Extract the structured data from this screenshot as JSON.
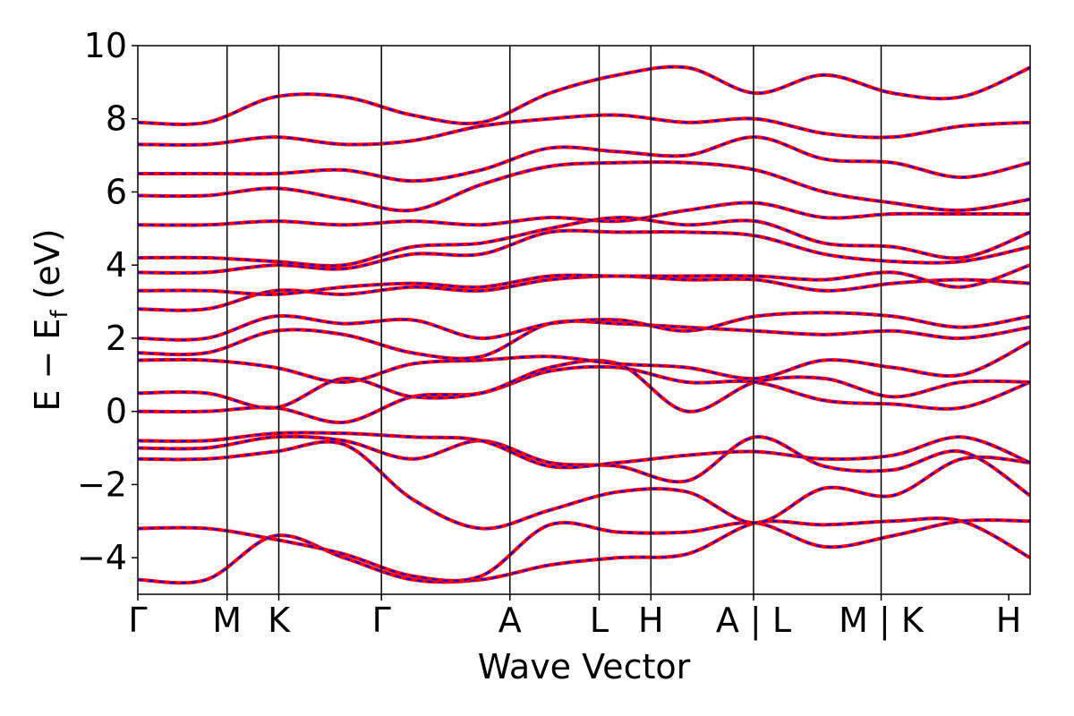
{
  "chart_data": {
    "type": "line",
    "xlabel": "Wave Vector",
    "ylabel_main": "E − E",
    "ylabel_sub": "f",
    "ylabel_unit": "(eV)",
    "ylim": [
      -5,
      10
    ],
    "yticks": [
      -4,
      -2,
      0,
      2,
      4,
      6,
      8,
      10
    ],
    "ytick_labels": [
      "−4",
      "−2",
      "0",
      "2",
      "4",
      "6",
      "8",
      "10"
    ],
    "xlim": [
      0,
      10
    ],
    "kpoints": [
      {
        "label": "Γ",
        "x": 0.0
      },
      {
        "label": "M",
        "x": 1.0
      },
      {
        "label": "K",
        "x": 1.58
      },
      {
        "label": "Γ",
        "x": 2.73
      },
      {
        "label": "A",
        "x": 4.17
      },
      {
        "label": "L",
        "x": 5.17
      },
      {
        "label": "H",
        "x": 5.75
      },
      {
        "label": "A | L",
        "x": 6.9
      },
      {
        "label": "M | K",
        "x": 8.33
      },
      {
        "label": "H",
        "x": 9.76
      }
    ],
    "grid": false,
    "series": [
      {
        "color": "#ff0000",
        "style": "solid"
      },
      {
        "color": "#0000ff",
        "style": "dashed"
      }
    ],
    "bands": [
      [
        -4.6,
        -4.6,
        -3.4,
        -4.0,
        -4.6,
        -4.6,
        -4.2,
        -4.0,
        -3.9,
        -3.05,
        -3.1,
        -3.0,
        -3.0,
        -4.0
      ],
      [
        -3.2,
        -3.2,
        -3.5,
        -3.9,
        -4.5,
        -4.5,
        -3.1,
        -3.3,
        -3.3,
        -3.05,
        -3.7,
        -3.4,
        -3.0,
        -3.0
      ],
      [
        -1.3,
        -1.3,
        -1.1,
        -0.9,
        -2.4,
        -3.2,
        -2.7,
        -2.2,
        -2.2,
        -3.05,
        -2.1,
        -2.3,
        -1.3,
        -1.4
      ],
      [
        -1.0,
        -1.0,
        -0.7,
        -0.8,
        -1.3,
        -0.8,
        -1.4,
        -1.5,
        -1.9,
        -0.7,
        -1.5,
        -1.6,
        -1.1,
        -2.3
      ],
      [
        -0.8,
        -0.8,
        -0.6,
        -0.6,
        -0.7,
        -0.8,
        -1.5,
        -1.4,
        -1.2,
        -1.1,
        -1.3,
        -1.2,
        -0.7,
        -1.4
      ],
      [
        0.0,
        0.0,
        0.1,
        -0.3,
        0.4,
        0.5,
        1.1,
        1.2,
        0.8,
        0.8,
        0.3,
        0.2,
        0.1,
        0.8
      ],
      [
        0.5,
        0.5,
        0.1,
        0.9,
        0.4,
        0.5,
        1.2,
        1.3,
        0.0,
        0.8,
        0.9,
        0.4,
        0.8,
        0.8
      ],
      [
        1.4,
        1.4,
        1.2,
        0.8,
        1.3,
        1.4,
        1.5,
        1.3,
        1.2,
        0.9,
        1.4,
        1.2,
        1.0,
        1.9
      ],
      [
        1.6,
        1.6,
        2.2,
        2.1,
        1.6,
        1.5,
        2.4,
        2.4,
        2.3,
        2.2,
        2.1,
        2.2,
        2.0,
        2.3
      ],
      [
        2.0,
        2.0,
        2.6,
        2.4,
        2.5,
        2.0,
        2.4,
        2.5,
        2.2,
        2.6,
        2.7,
        2.6,
        2.3,
        2.6
      ],
      [
        2.8,
        2.8,
        3.3,
        3.2,
        3.4,
        3.3,
        3.6,
        3.7,
        3.6,
        3.6,
        3.3,
        3.5,
        3.6,
        3.5
      ],
      [
        3.3,
        3.3,
        3.2,
        3.4,
        3.5,
        3.4,
        3.7,
        3.7,
        3.7,
        3.7,
        3.6,
        3.8,
        3.4,
        4.0
      ],
      [
        3.8,
        3.8,
        4.0,
        3.9,
        4.3,
        4.3,
        4.9,
        4.9,
        4.9,
        4.8,
        4.3,
        4.1,
        4.1,
        4.5
      ],
      [
        4.2,
        4.2,
        4.1,
        4.0,
        4.5,
        4.6,
        5.0,
        5.3,
        5.1,
        5.2,
        4.6,
        4.5,
        4.2,
        4.9
      ],
      [
        5.1,
        5.1,
        5.2,
        5.1,
        5.2,
        5.1,
        5.3,
        5.2,
        5.5,
        5.7,
        5.3,
        5.4,
        5.4,
        5.4
      ],
      [
        5.9,
        5.9,
        6.1,
        5.8,
        5.5,
        6.2,
        6.7,
        6.8,
        6.8,
        6.6,
        6.0,
        5.7,
        5.5,
        5.8
      ],
      [
        6.5,
        6.5,
        6.5,
        6.6,
        6.3,
        6.6,
        7.2,
        7.1,
        7.0,
        7.5,
        6.9,
        6.8,
        6.4,
        6.8
      ],
      [
        7.3,
        7.3,
        7.5,
        7.3,
        7.4,
        7.8,
        8.0,
        8.1,
        7.9,
        8.0,
        7.6,
        7.5,
        7.8,
        7.9
      ],
      [
        7.9,
        7.9,
        8.6,
        8.6,
        8.1,
        7.9,
        8.7,
        9.2,
        9.4,
        8.7,
        9.2,
        8.7,
        8.6,
        9.4
      ]
    ]
  }
}
